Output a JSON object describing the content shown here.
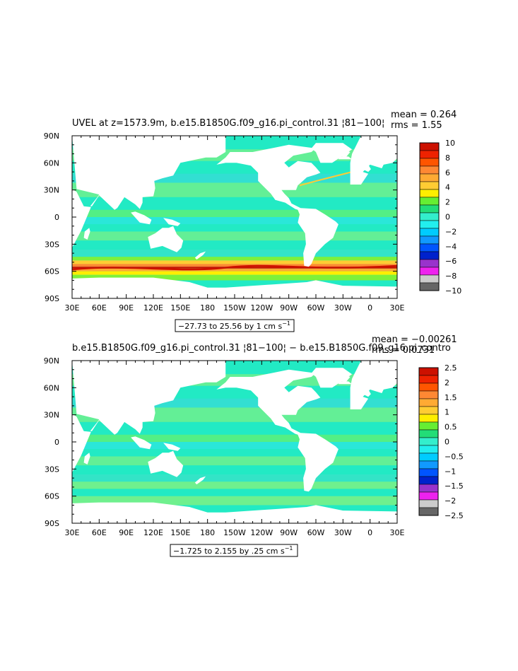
{
  "colors": {
    "ocean_base": "#22eac4",
    "land": "#ffffff",
    "frame": "#000000",
    "colorbar_upper": [
      "#cc1100",
      "#ee2200",
      "#ff5500",
      "#ff8833",
      "#ffaa33",
      "#ffcc33",
      "#ffee00",
      "#66ee33",
      "#22dd77"
    ],
    "colorbar_lower": [
      "#33eecc",
      "#22eeee",
      "#00ccff",
      "#1199ff",
      "#0055ff",
      "#0022cc",
      "#9933cc",
      "#ee22ee",
      "#cccccc",
      "#666666"
    ]
  },
  "chart_data": [
    {
      "type": "heatmap",
      "title": "UVEL at z=1573.9m, b.e15.B1850G.f09_g16.pi_control.31 ¦81−100¦",
      "stats": {
        "mean": "mean = 0.264",
        "rms": "rms = 1.55"
      },
      "x_tick_labels": [
        "30E",
        "60E",
        "90E",
        "120E",
        "150E",
        "180",
        "150W",
        "120W",
        "90W",
        "60W",
        "30W",
        "0",
        "30E"
      ],
      "y_tick_labels": [
        "90N",
        "60N",
        "30N",
        "0",
        "30S",
        "60S",
        "90S"
      ],
      "xlim": [
        30,
        390
      ],
      "ylim": [
        -90,
        90
      ],
      "colorbar_levels": [
        "10",
        "8",
        "6",
        "4",
        "2",
        "0",
        "−2",
        "−4",
        "−6",
        "−8",
        "−10"
      ],
      "contour_info": "−27.73 to 25.56 by 1 cm s",
      "units_exponent": "−1"
    },
    {
      "type": "heatmap",
      "title": "b.e15.B1850G.f09_g16.pi_control.31 ¦81−100¦ − b.e15.B1850G.f09_g16.pi_contro",
      "stats": {
        "mean": "mean = −0.00261",
        "rms": "rms = 0.0731"
      },
      "x_tick_labels": [
        "30E",
        "60E",
        "90E",
        "120E",
        "150E",
        "180",
        "150W",
        "120W",
        "90W",
        "60W",
        "30W",
        "0",
        "30E"
      ],
      "y_tick_labels": [
        "90N",
        "60N",
        "30N",
        "0",
        "30S",
        "60S",
        "90S"
      ],
      "xlim": [
        30,
        390
      ],
      "ylim": [
        -90,
        90
      ],
      "colorbar_levels": [
        "2.5",
        "2",
        "1.5",
        "1",
        "0.5",
        "0",
        "−0.5",
        "−1",
        "−1.5",
        "−2",
        "−2.5"
      ],
      "contour_info": "−1.725 to 2.155 by .25 cm s",
      "units_exponent": "−1"
    }
  ]
}
